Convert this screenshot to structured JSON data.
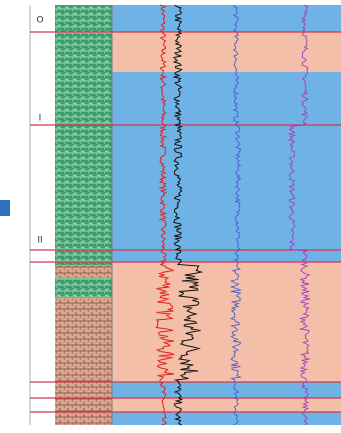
{
  "zones": [
    {
      "label": "O"
    },
    {
      "label": "I"
    },
    {
      "label": "II"
    }
  ]
}
